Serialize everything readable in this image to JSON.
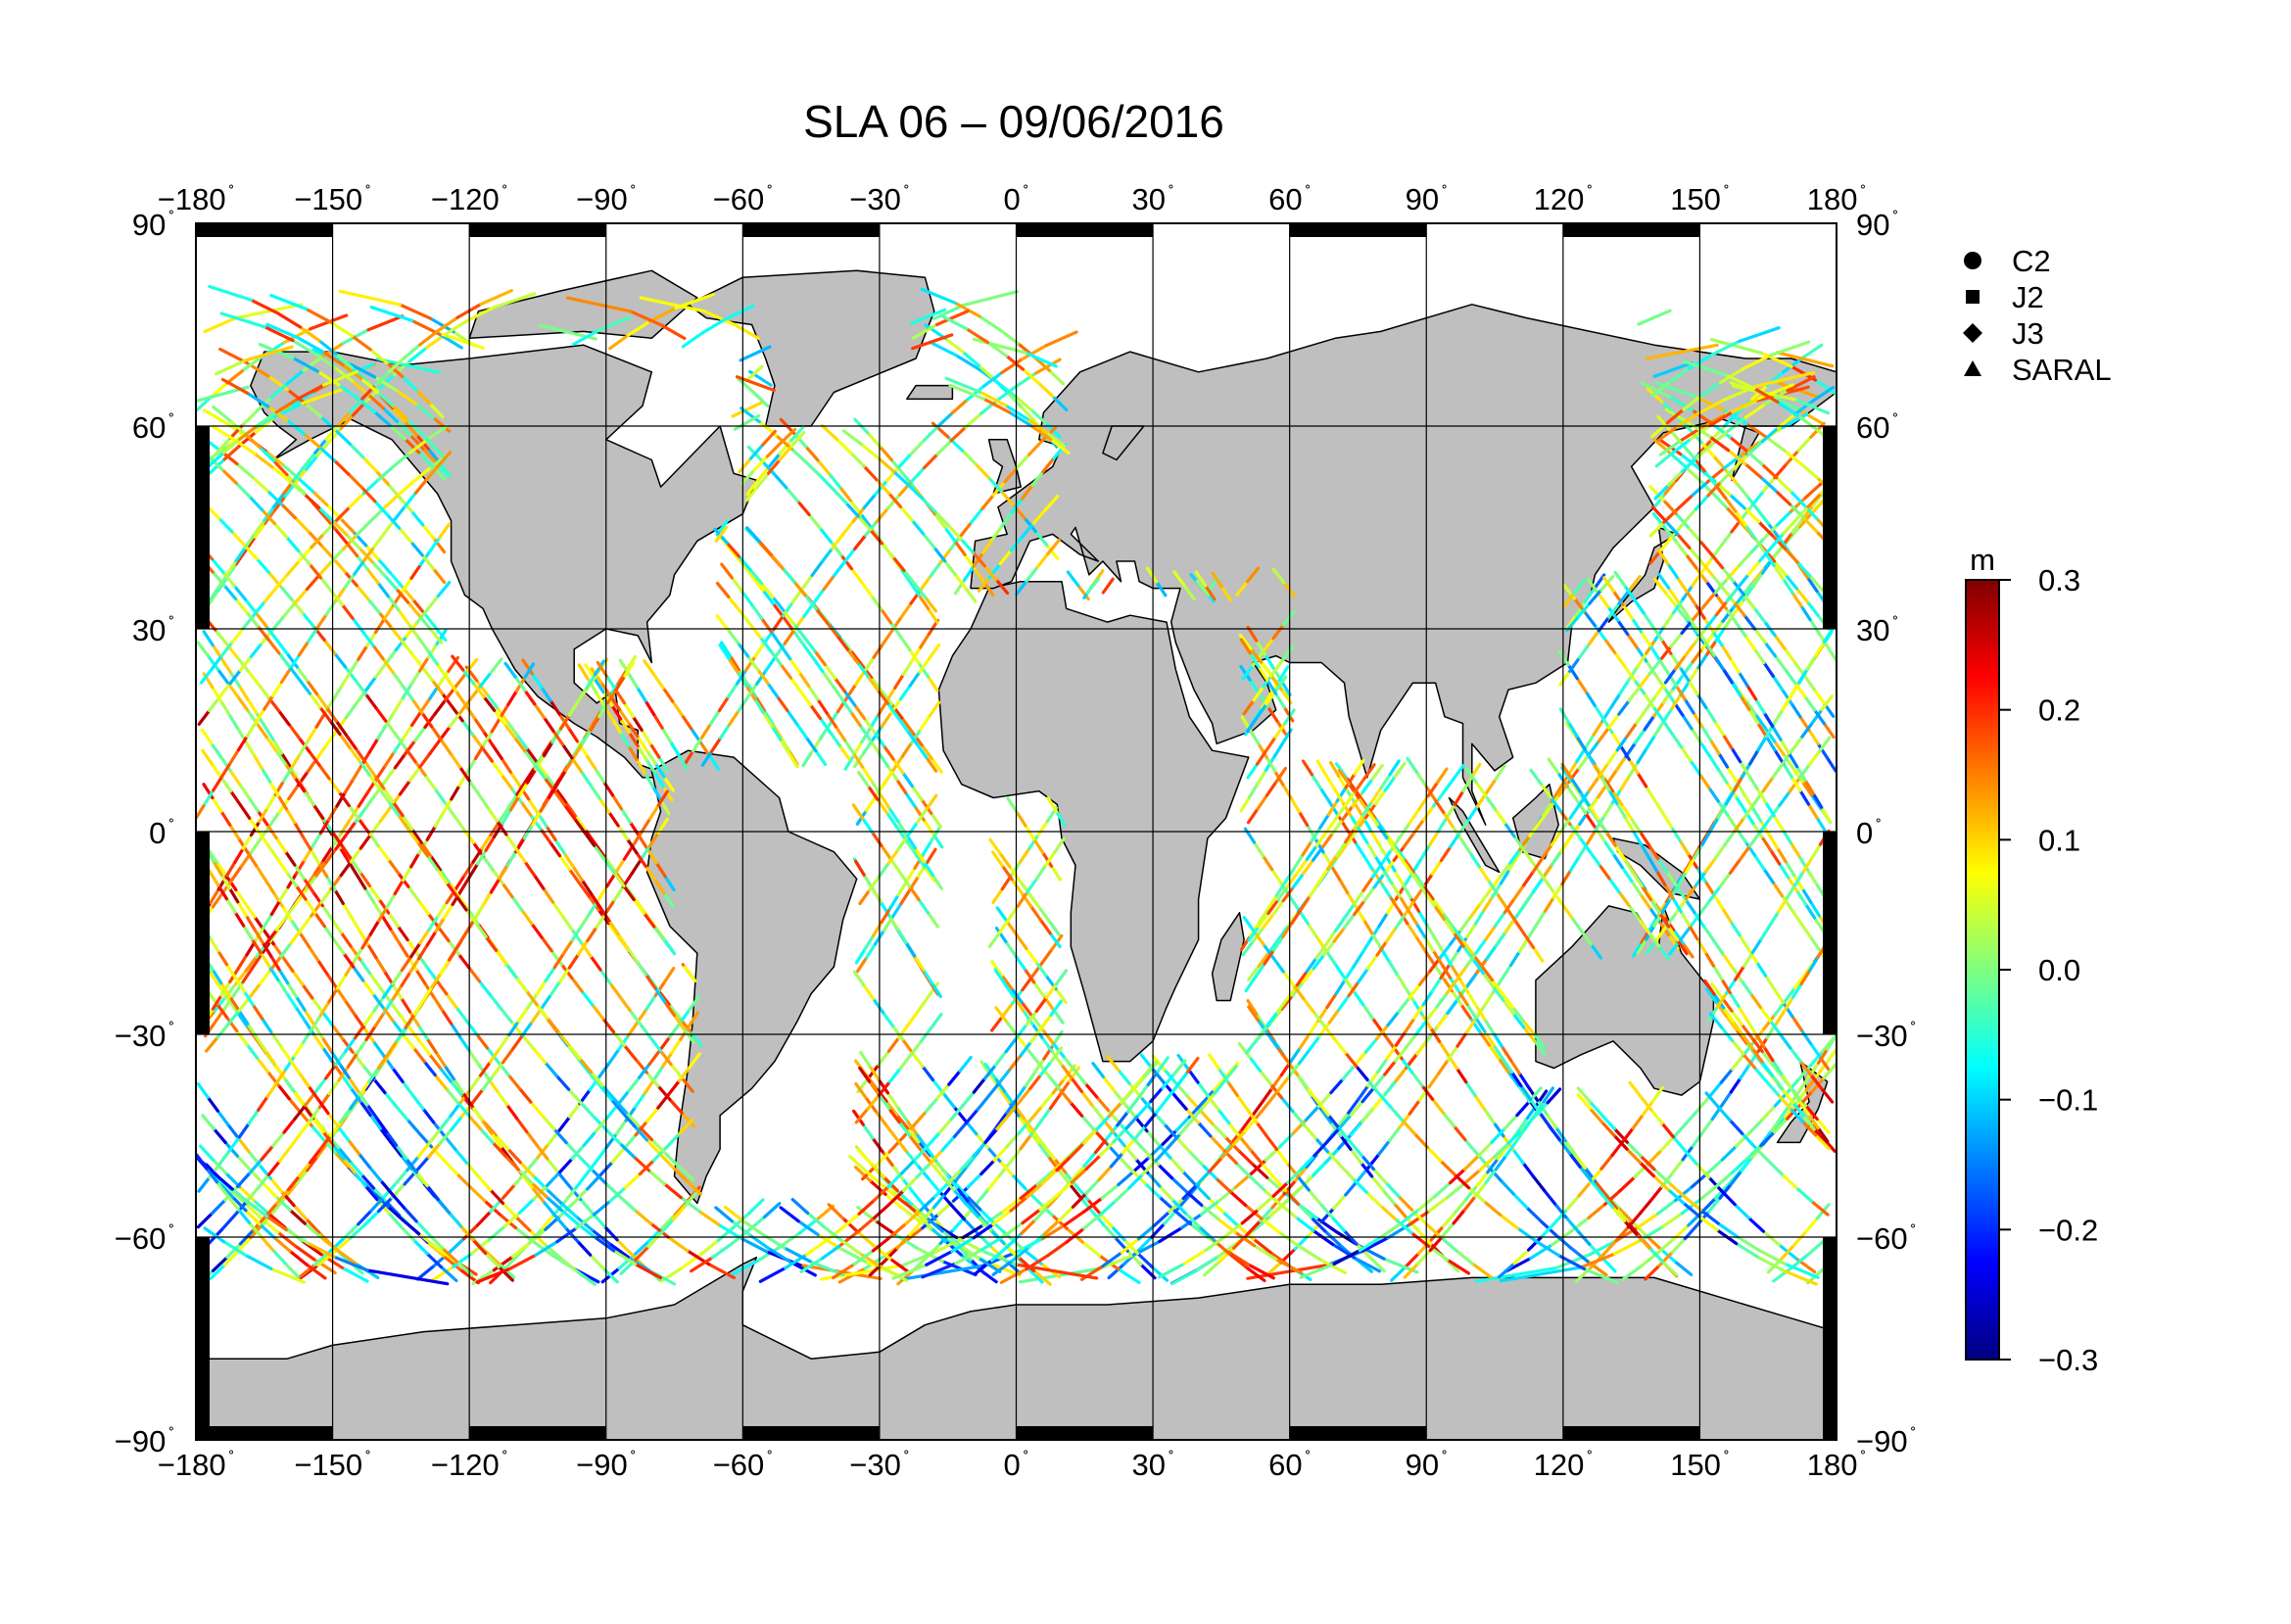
{
  "title": "SLA 06 – 09/06/2016",
  "map": {
    "lon_range": [
      -180,
      180
    ],
    "lat_range": [
      -90,
      90
    ],
    "lon_ticks": [
      -180,
      -150,
      -120,
      -90,
      -60,
      -30,
      0,
      30,
      60,
      90,
      120,
      150,
      180
    ],
    "lat_ticks": [
      -90,
      -60,
      -30,
      0,
      30,
      60,
      90
    ],
    "lon_tick_labels": [
      "−180",
      "−150",
      "−120",
      "−90",
      "−60",
      "−30",
      "0",
      "30",
      "60",
      "90",
      "120",
      "150",
      "180"
    ],
    "lat_tick_labels": [
      "−90",
      "−60",
      "−30",
      "0",
      "30",
      "60",
      "90"
    ],
    "degree_symbol": "˚",
    "grid": true,
    "land_color": "#bfbfbf",
    "ocean_color": "#ffffff"
  },
  "legend": {
    "placement": "top-right",
    "items": [
      {
        "label": "C2",
        "marker": "circle"
      },
      {
        "label": "J2",
        "marker": "square"
      },
      {
        "label": "J3",
        "marker": "diamond"
      },
      {
        "label": "SARAL",
        "marker": "triangle"
      }
    ]
  },
  "colorbar": {
    "unit": "m",
    "min": -0.3,
    "max": 0.3,
    "ticks": [
      0.3,
      0.2,
      0.1,
      0.0,
      -0.1,
      -0.2,
      -0.3
    ],
    "tick_labels": [
      "0.3",
      "0.2",
      "0.1",
      "0.0",
      "−0.1",
      "−0.2",
      "−0.3"
    ],
    "colormap": [
      "#00007f",
      "#0000ff",
      "#007fff",
      "#00ffff",
      "#7fff7f",
      "#ffff00",
      "#ff7f00",
      "#ff0000",
      "#7f0000"
    ]
  }
}
